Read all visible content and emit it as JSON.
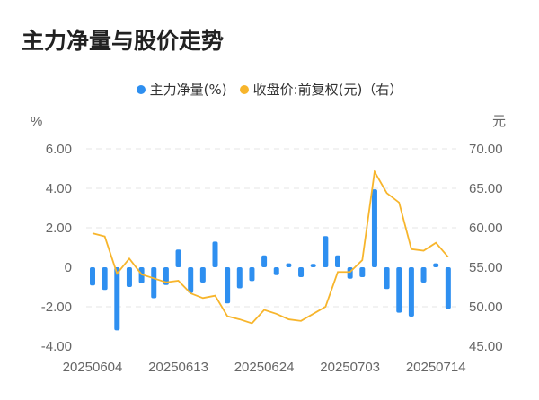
{
  "title": "主力净量与股价走势",
  "chart_data": {
    "type": "bar+line",
    "title": "主力净量与股价走势",
    "legend_position": "top",
    "left_axis": {
      "unit": "%",
      "ticks": [
        "6.00",
        "4.00",
        "2.00",
        "0",
        "-2.00",
        "-4.00"
      ],
      "ylim": [
        -4,
        6
      ]
    },
    "right_axis": {
      "unit": "元",
      "ticks": [
        "70.00",
        "65.00",
        "60.00",
        "55.00",
        "50.00",
        "45.00"
      ],
      "ylim": [
        45,
        70
      ]
    },
    "x_tick_labels": [
      "20250604",
      "20250613",
      "20250624",
      "20250703",
      "20250714"
    ],
    "x_tick_indices": [
      0,
      7,
      14,
      21,
      28
    ],
    "series": [
      {
        "name": "主力净量(%)",
        "type": "bar",
        "axis": "left",
        "color": "#2E8FF0",
        "values": [
          -0.92,
          -1.15,
          -3.2,
          -1.0,
          -0.8,
          -1.57,
          -0.9,
          0.9,
          -1.3,
          -0.77,
          1.3,
          -1.83,
          -1.07,
          -0.7,
          0.6,
          -0.4,
          0.2,
          -0.5,
          0.17,
          1.58,
          0.6,
          -0.58,
          -0.5,
          3.95,
          -1.1,
          -2.3,
          -2.5,
          -0.77,
          0.2,
          -2.1
        ]
      },
      {
        "name": "收盘价:前复权(元)（右）",
        "type": "line",
        "axis": "right",
        "color": "#F7B52C",
        "values": [
          59.3,
          58.9,
          54.2,
          56.1,
          54.1,
          53.6,
          53.1,
          53.3,
          51.7,
          51.1,
          51.4,
          48.8,
          48.4,
          47.9,
          49.6,
          49.1,
          48.4,
          48.2,
          49.1,
          50.0,
          54.4,
          54.4,
          55.9,
          67.1,
          64.4,
          63.2,
          57.3,
          57.1,
          58.1,
          56.3
        ]
      }
    ],
    "grid": true
  }
}
